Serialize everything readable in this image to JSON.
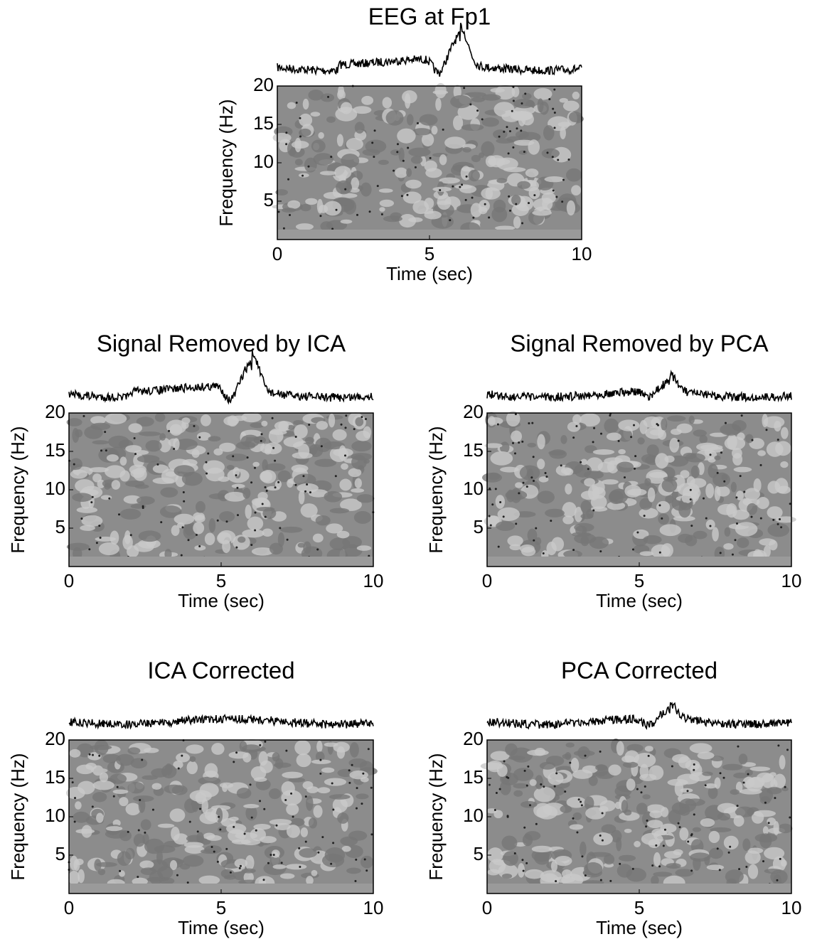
{
  "chart_data": [
    {
      "type": "spectrogram",
      "title": "EEG at Fp1",
      "xlabel": "Time (sec)",
      "ylabel": "Frequency (Hz)",
      "xlim": [
        0,
        10
      ],
      "ylim": [
        0,
        20
      ],
      "xticks": [
        0,
        5,
        10
      ],
      "yticks": [
        5,
        10,
        15,
        20
      ]
    },
    {
      "type": "spectrogram",
      "title": "Signal Removed by ICA",
      "xlabel": "Time (sec)",
      "ylabel": "Frequency (Hz)",
      "xlim": [
        0,
        10
      ],
      "ylim": [
        0,
        20
      ],
      "xticks": [
        0,
        5,
        10
      ],
      "yticks": [
        5,
        10,
        15,
        20
      ]
    },
    {
      "type": "spectrogram",
      "title": "Signal Removed by PCA",
      "xlabel": "Time (sec)",
      "ylabel": "Frequency (Hz)",
      "xlim": [
        0,
        10
      ],
      "ylim": [
        0,
        20
      ],
      "xticks": [
        0,
        5,
        10
      ],
      "yticks": [
        5,
        10,
        15,
        20
      ]
    },
    {
      "type": "spectrogram",
      "title": "ICA Corrected",
      "xlabel": "Time (sec)",
      "ylabel": "Frequency (Hz)",
      "xlim": [
        0,
        10
      ],
      "ylim": [
        0,
        20
      ],
      "xticks": [
        0,
        5,
        10
      ],
      "yticks": [
        5,
        10,
        15,
        20
      ]
    },
    {
      "type": "spectrogram",
      "title": "PCA Corrected",
      "xlabel": "Time (sec)",
      "ylabel": "Frequency (Hz)",
      "xlim": [
        0,
        10
      ],
      "ylim": [
        0,
        20
      ],
      "xticks": [
        0,
        5,
        10
      ],
      "yticks": [
        5,
        10,
        15,
        20
      ]
    }
  ]
}
